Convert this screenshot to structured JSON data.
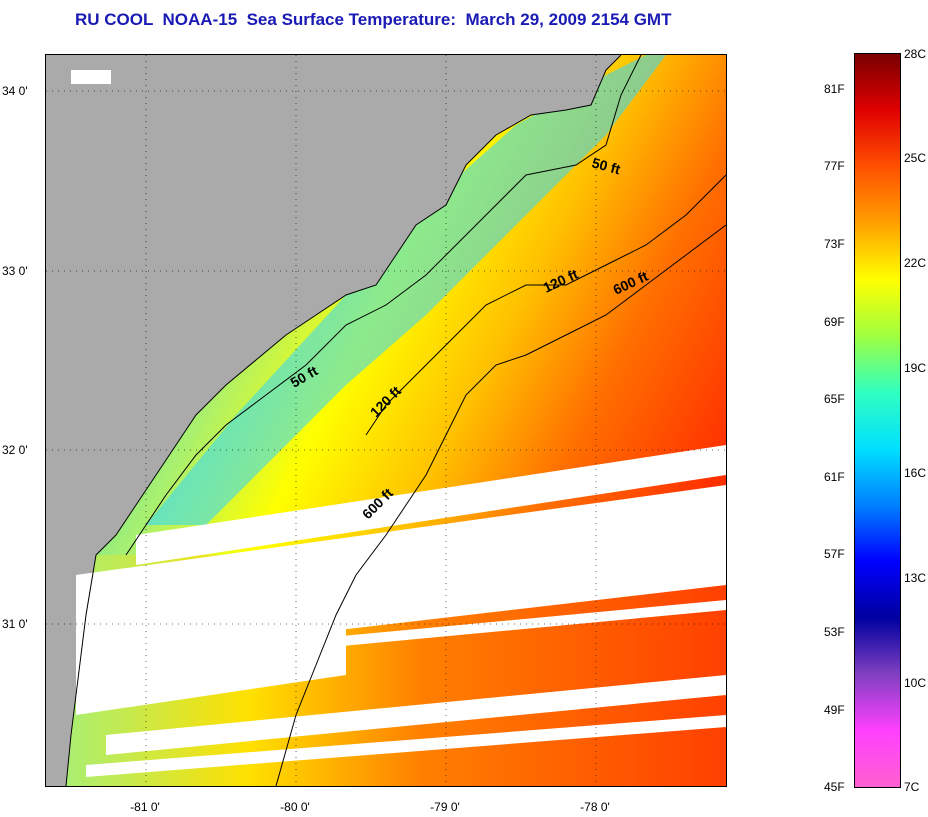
{
  "title": "RU COOL  NOAA-15  Sea Surface Temperature:  March 29, 2009 2154 GMT",
  "map": {
    "lat_labels": [
      "34 0'",
      "33 0'",
      "32 0'",
      "31 0'"
    ],
    "lon_labels": [
      "-81 0'",
      "-80 0'",
      "-79 0'",
      "-78 0'"
    ],
    "contour_labels": [
      "50 ft",
      "120 ft",
      "600 ft",
      "50 ft",
      "120 ft",
      "600 ft"
    ],
    "colors": {
      "land": "#aaaaaa",
      "cloud_mask": "#ffffff",
      "coastline": "#000000"
    }
  },
  "colorbar": {
    "fahrenheit_labels": [
      "81F",
      "77F",
      "73F",
      "69F",
      "65F",
      "61F",
      "57F",
      "53F",
      "49F",
      "45F"
    ],
    "celsius_labels": [
      "28C",
      "25C",
      "22C",
      "19C",
      "16C",
      "13C",
      "10C",
      "7C"
    ],
    "gradient_colors": [
      "#7a0000",
      "#e00000",
      "#ff5000",
      "#ffa000",
      "#ffff00",
      "#a0ff40",
      "#30ffc0",
      "#00e0ff",
      "#0080ff",
      "#0000ff",
      "#0000a0",
      "#8040c0",
      "#ff40ff",
      "#ff60d0"
    ]
  }
}
